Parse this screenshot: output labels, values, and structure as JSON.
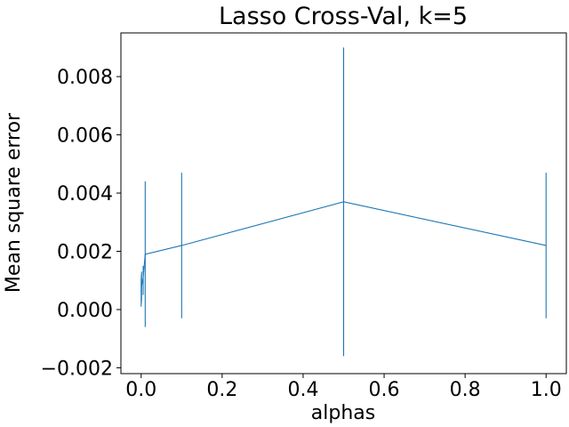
{
  "chart_data": {
    "type": "line",
    "title": "Lasso Cross-Val, k=5",
    "xlabel": "alphas",
    "ylabel": "Mean square error",
    "xlim": [
      -0.05,
      1.05
    ],
    "ylim": [
      -0.0022,
      0.0095
    ],
    "xticks": [
      0.0,
      0.2,
      0.4,
      0.6,
      0.8,
      1.0
    ],
    "xtick_labels": [
      "0.0",
      "0.2",
      "0.4",
      "0.6",
      "0.8",
      "1.0"
    ],
    "yticks": [
      -0.002,
      0.0,
      0.002,
      0.004,
      0.006,
      0.008
    ],
    "ytick_labels": [
      "−0.002",
      "0.000",
      "0.002",
      "0.004",
      "0.006",
      "0.008"
    ],
    "grid": false,
    "series": [
      {
        "color": "#1f77b4",
        "x": [
          0.0001,
          0.0005,
          0.001,
          0.005,
          0.01,
          0.1,
          0.5,
          1.0
        ],
        "y": [
          0.0006,
          0.0007,
          0.0008,
          0.0011,
          0.0019,
          0.0022,
          0.0037,
          0.0022
        ],
        "err_low": [
          0.0001,
          0.0002,
          0.0003,
          0.0005,
          -0.0006,
          -0.0003,
          -0.0016,
          -0.0003
        ],
        "err_high": [
          0.0011,
          0.0012,
          0.0013,
          0.0015,
          0.0044,
          0.0047,
          0.009,
          0.0047
        ]
      }
    ]
  }
}
